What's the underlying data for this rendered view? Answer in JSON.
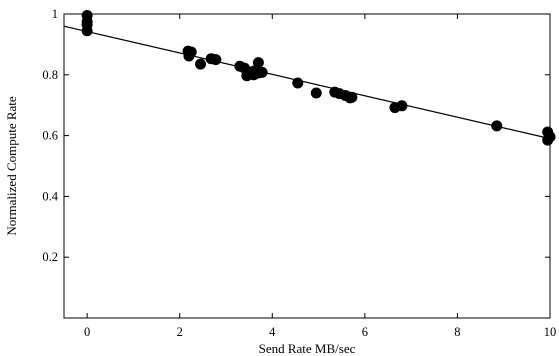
{
  "chart_data": {
    "type": "scatter",
    "xlabel": "Send Rate MB/sec",
    "ylabel": "Normalized Compute Rate",
    "xlim": [
      -0.5,
      10
    ],
    "ylim": [
      0,
      1
    ],
    "x_ticks": [
      0,
      2,
      4,
      6,
      8,
      10
    ],
    "y_ticks": [
      0.2,
      0.4,
      0.6,
      0.8,
      1
    ],
    "x_tick_labels": [
      "0",
      "2",
      "4",
      "6",
      "8",
      "10"
    ],
    "y_tick_labels": [
      "0.2",
      "0.4",
      "0.6",
      "0.8",
      "1"
    ],
    "grid": false,
    "legend": "none",
    "series": [
      {
        "marker": "filled-circle",
        "color": "#000000",
        "points": [
          {
            "x": 0.0,
            "y": 0.995
          },
          {
            "x": 0.0,
            "y": 0.975
          },
          {
            "x": 0.0,
            "y": 0.965
          },
          {
            "x": 0.0,
            "y": 0.945
          },
          {
            "x": 2.18,
            "y": 0.878
          },
          {
            "x": 2.25,
            "y": 0.875
          },
          {
            "x": 2.2,
            "y": 0.862
          },
          {
            "x": 2.45,
            "y": 0.835
          },
          {
            "x": 2.68,
            "y": 0.853
          },
          {
            "x": 2.78,
            "y": 0.85
          },
          {
            "x": 3.3,
            "y": 0.828
          },
          {
            "x": 3.4,
            "y": 0.822
          },
          {
            "x": 3.45,
            "y": 0.797
          },
          {
            "x": 3.6,
            "y": 0.8
          },
          {
            "x": 3.6,
            "y": 0.812
          },
          {
            "x": 3.7,
            "y": 0.84
          },
          {
            "x": 3.7,
            "y": 0.806
          },
          {
            "x": 3.78,
            "y": 0.808
          },
          {
            "x": 4.55,
            "y": 0.773
          },
          {
            "x": 4.95,
            "y": 0.74
          },
          {
            "x": 5.35,
            "y": 0.743
          },
          {
            "x": 5.45,
            "y": 0.738
          },
          {
            "x": 5.58,
            "y": 0.732
          },
          {
            "x": 5.68,
            "y": 0.724
          },
          {
            "x": 5.72,
            "y": 0.726
          },
          {
            "x": 6.65,
            "y": 0.692
          },
          {
            "x": 6.8,
            "y": 0.698
          },
          {
            "x": 8.85,
            "y": 0.632
          },
          {
            "x": 9.95,
            "y": 0.612
          },
          {
            "x": 10.0,
            "y": 0.596
          },
          {
            "x": 9.95,
            "y": 0.585
          }
        ]
      }
    ],
    "fit_line": {
      "x": [
        -0.5,
        10
      ],
      "y": [
        0.96,
        0.59
      ]
    }
  }
}
